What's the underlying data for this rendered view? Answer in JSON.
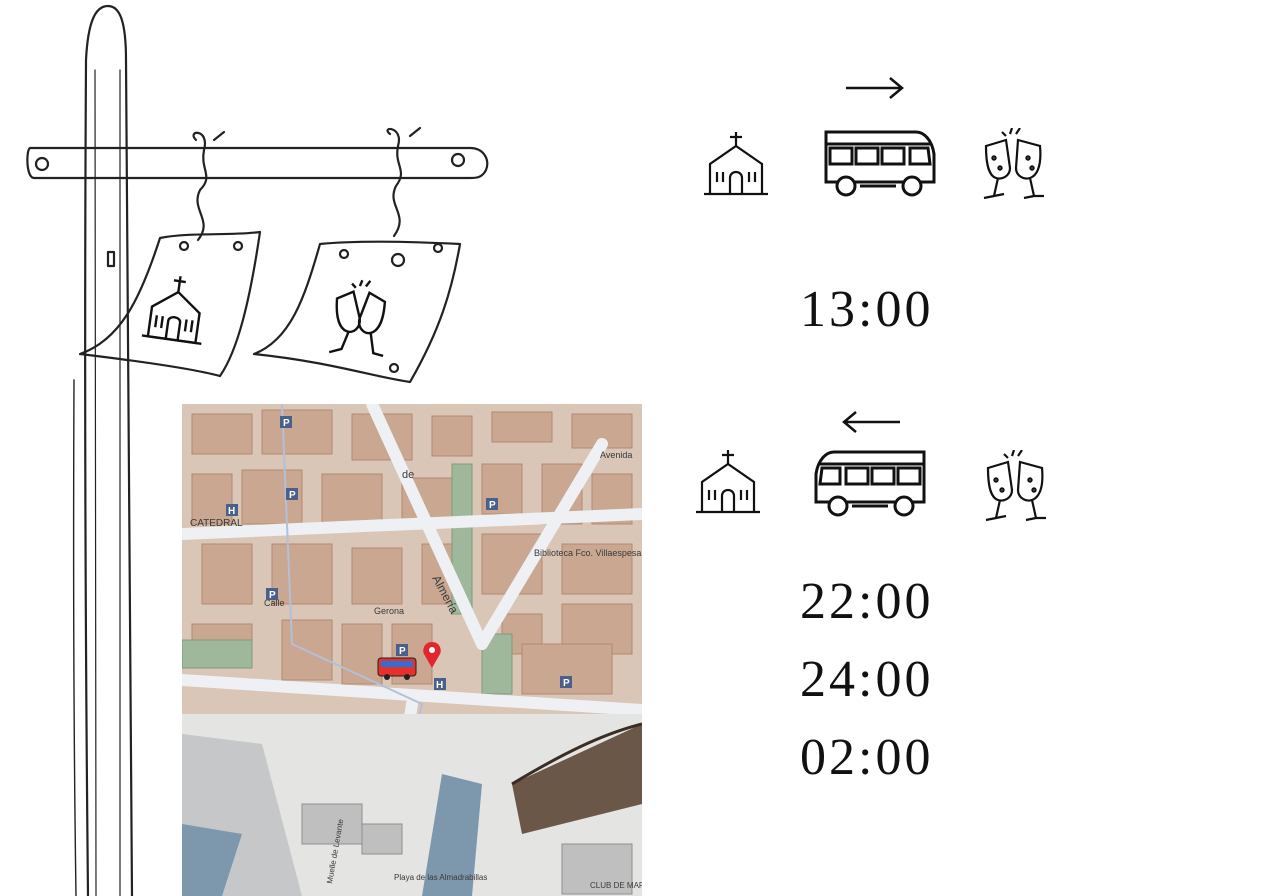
{
  "outbound": {
    "from_icon": "church-icon",
    "vehicle_icon": "bus-icon",
    "to_icon": "champagne-glasses-icon",
    "direction": "right",
    "times": [
      "13:00"
    ]
  },
  "return": {
    "from_icon": "church-icon",
    "vehicle_icon": "bus-icon",
    "to_icon": "champagne-glasses-icon",
    "direction": "left",
    "times": [
      "22:00",
      "24:00",
      "02:00"
    ]
  },
  "signpost": {
    "sign_left_icon": "church-icon",
    "sign_right_icon": "champagne-glasses-icon"
  },
  "map": {
    "labels": {
      "street_1": "Almería",
      "street_2": "de",
      "library": "Biblioteca Fco. Villaespesa",
      "cathedral": "CATEDRAL",
      "calle": "Calle",
      "gerona": "Gerona",
      "avenida": "Avenida",
      "beach": "Playa de las Almadrabillas",
      "club": "CLUB DE MAR",
      "muelle": "Muelle de Levante",
      "parking": "P",
      "hospital": "H"
    },
    "marker_icon": "map-pin-icon",
    "bus_marker_icon": "bus-icon"
  }
}
